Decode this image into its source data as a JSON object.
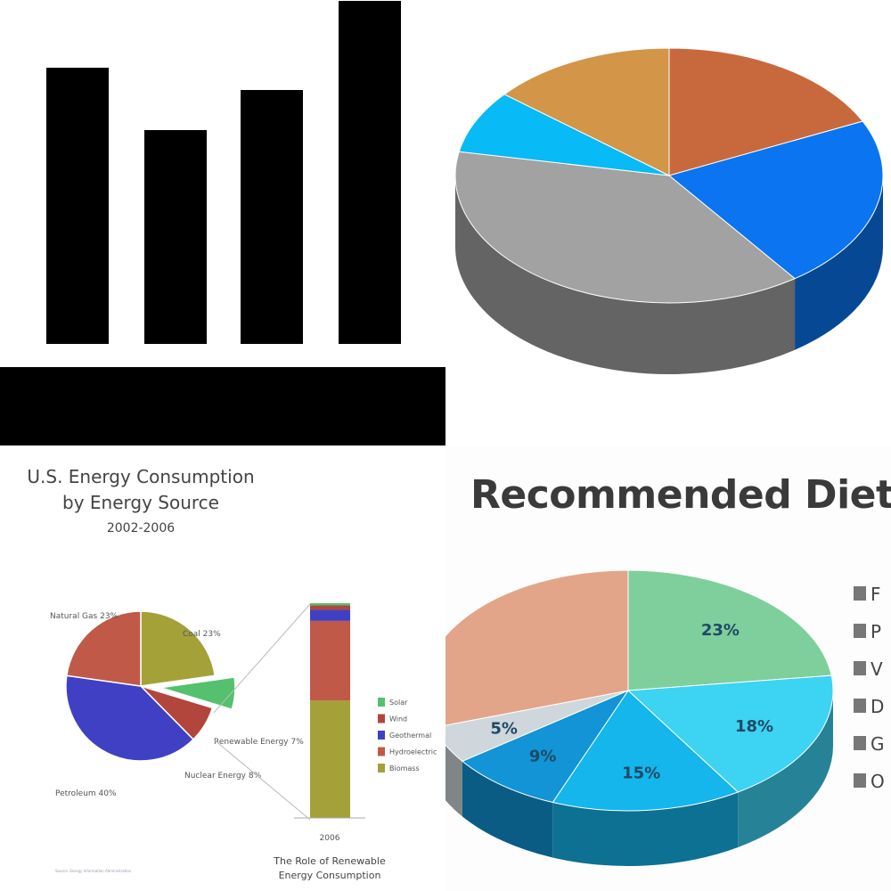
{
  "chart_data": [
    {
      "type": "bar",
      "categories": [
        "",
        "",
        "",
        ""
      ],
      "values": [
        62,
        48,
        57,
        77
      ],
      "ylim": [
        0,
        80
      ],
      "grid": false,
      "colors": {
        "bar": "#000000",
        "axis": "#000000",
        "background": "#ffffff"
      }
    },
    {
      "type": "pie",
      "style": "3d",
      "slices": [
        {
          "label": "",
          "value": 18,
          "color": "#c8693d"
        },
        {
          "label": "",
          "value": 22,
          "color": "#0b74f0"
        },
        {
          "label": "",
          "value": 38,
          "color": "#a2a2a2"
        },
        {
          "label": "",
          "value": 8,
          "color": "#08baf5"
        },
        {
          "label": "",
          "value": 14,
          "color": "#d39548"
        }
      ]
    },
    {
      "type": "pie",
      "title": "U.S. Energy Consumption",
      "subtitle": "by Energy Source",
      "period": "2002-2006",
      "slices": [
        {
          "label": "Coal 23%",
          "value": 23,
          "color": "#a4a139",
          "exploded": false
        },
        {
          "label": "Renewable Energy 7%",
          "value": 7,
          "color": "#55c06e",
          "exploded": true
        },
        {
          "label": "Nuclear Energy 8%",
          "value": 8,
          "color": "#b2463c",
          "exploded": false
        },
        {
          "label": "Petroleum 40%",
          "value": 40,
          "color": "#4040c4",
          "exploded": false
        },
        {
          "label": "Natural Gas 23%",
          "value": 23,
          "color": "#c05948",
          "exploded": false
        }
      ],
      "stack": {
        "type": "bar",
        "categories": [
          "2006"
        ],
        "series": [
          {
            "name": "Biomass",
            "value": 53,
            "color": "#a4a139"
          },
          {
            "name": "Hydroelectric",
            "value": 36,
            "color": "#c05948"
          },
          {
            "name": "Geothermal",
            "value": 5,
            "color": "#4040c4"
          },
          {
            "name": "Wind",
            "value": 2,
            "color": "#b2463c"
          },
          {
            "name": "Solar",
            "value": 1,
            "color": "#55c06e"
          }
        ],
        "caption_line1": "The Role of Renewable",
        "caption_line2": "Energy Consumption"
      },
      "source": "Source: Energy Information Administration",
      "legend_position": "right"
    },
    {
      "type": "pie",
      "style": "3d",
      "title": "Recommended Diet",
      "slices": [
        {
          "label": "23%",
          "value": 23,
          "color": "#7fcf9c"
        },
        {
          "label": "18%",
          "value": 18,
          "color": "#3dd3f3"
        },
        {
          "label": "15%",
          "value": 15,
          "color": "#14b6ec"
        },
        {
          "label": "9%",
          "value": 9,
          "color": "#1294d6"
        },
        {
          "label": "5%",
          "value": 5,
          "color": "#cfd6dc"
        },
        {
          "label": "",
          "value": 30,
          "color": "#e3a58a"
        }
      ],
      "legend_entries": [
        "F",
        "P",
        "V",
        "D",
        "G",
        "O"
      ],
      "legend_position": "right"
    }
  ]
}
